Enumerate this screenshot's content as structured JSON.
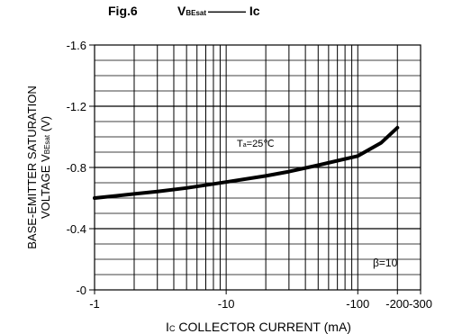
{
  "header": {
    "fig_label": "Fig.6",
    "title_main": "V",
    "title_sub": "BEsat",
    "title_tail": "——— Ic"
  },
  "chart_data": {
    "type": "line",
    "xscale": "log",
    "xlim": [
      -1,
      -300
    ],
    "ylim": [
      0,
      -1.6
    ],
    "grid": true,
    "xticks": [
      "-1",
      "-10",
      "-100",
      "-200",
      "-300"
    ],
    "yticks": [
      "-0",
      "-0.4",
      "-0.8",
      "-1.2",
      "-1.6"
    ],
    "ylabel_line1": "BASE-EMITTER SATURATION",
    "ylabel_line2": "VOLTAGE V",
    "ylabel_sub": "BEsat",
    "ylabel_unit": " (V)",
    "xlabel_main": "I",
    "xlabel_sub": "C",
    "xlabel_rest": "  COLLECTOR CURRENT (mA)",
    "annotations": {
      "temp_main": "T",
      "temp_sub": "a",
      "temp_rest": "=25℃",
      "beta": "β=10"
    },
    "series": [
      {
        "x": [
          -1,
          -2,
          -3,
          -5,
          -10,
          -20,
          -30,
          -50,
          -100,
          -150,
          -200
        ],
        "y": [
          -0.6,
          -0.627,
          -0.643,
          -0.666,
          -0.705,
          -0.745,
          -0.773,
          -0.815,
          -0.875,
          -0.96,
          -1.06
        ]
      }
    ]
  }
}
